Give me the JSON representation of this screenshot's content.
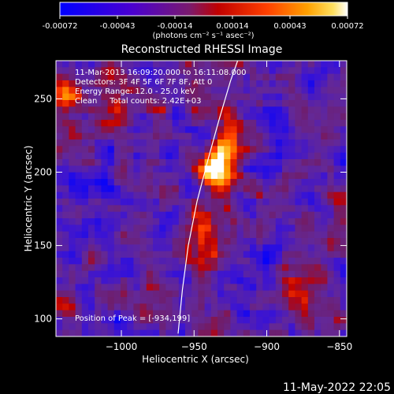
{
  "colorbar": {
    "ticks": [
      "-0.00072",
      "-0.00043",
      "-0.00014",
      "0.00014",
      "0.00043",
      "0.00072"
    ],
    "unit_label": "(photons cm⁻² s⁻¹ asec⁻²)"
  },
  "chart_data": {
    "type": "heatmap",
    "title": "Reconstructed RHESSI Image",
    "xlabel": "Heliocentric X (arcsec)",
    "ylabel": "Heliocentric Y (arcsec)",
    "xlim": [
      -1045,
      -845
    ],
    "ylim": [
      88,
      276
    ],
    "xticks": [
      -1000,
      -950,
      -900,
      -850
    ],
    "yticks": [
      100,
      150,
      200,
      250
    ],
    "xtick_labels": [
      "−1000",
      "−950",
      "−900",
      "−850"
    ],
    "ytick_labels": [
      "100",
      "150",
      "200",
      "250"
    ],
    "color_range": [
      -0.00072,
      0.00072
    ],
    "colormap": "blue-purple-red-orange-yellow-white",
    "annotations": [
      "11-Mar-2013 16:09:20.000 to 16:11:08.000",
      "Detectors: 3F 4F 5F 6F 7F 8F, Att 0",
      "Energy Range: 12.0 - 25.0 keV",
      "Clean     Total counts: 2.42E+03"
    ],
    "peak_label": "Position of Peak = [-934,199]",
    "peak": [
      -934,
      199
    ],
    "limb_curve": [
      [
        -961,
        90
      ],
      [
        -958,
        120
      ],
      [
        -954,
        150
      ],
      [
        -948,
        180
      ],
      [
        -940,
        210
      ],
      [
        -933,
        235
      ],
      [
        -925,
        262
      ],
      [
        -920,
        276
      ]
    ]
  },
  "footer": {
    "timestamp": "11-May-2022 22:05"
  }
}
